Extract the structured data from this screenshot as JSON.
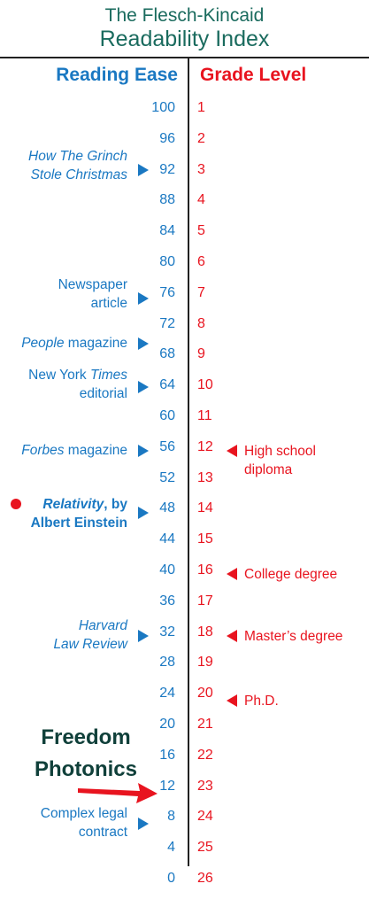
{
  "title": {
    "line1": "The Flesch-Kincaid",
    "line2": "Readability Index"
  },
  "headers": {
    "reading_ease": "Reading Ease",
    "grade_level": "Grade Level"
  },
  "scale": [
    {
      "ease": "100",
      "grade": "1"
    },
    {
      "ease": "96",
      "grade": "2"
    },
    {
      "ease": "92",
      "grade": "3"
    },
    {
      "ease": "88",
      "grade": "4"
    },
    {
      "ease": "84",
      "grade": "5"
    },
    {
      "ease": "80",
      "grade": "6"
    },
    {
      "ease": "76",
      "grade": "7"
    },
    {
      "ease": "72",
      "grade": "8"
    },
    {
      "ease": "68",
      "grade": "9"
    },
    {
      "ease": "64",
      "grade": "10"
    },
    {
      "ease": "60",
      "grade": "11"
    },
    {
      "ease": "56",
      "grade": "12"
    },
    {
      "ease": "52",
      "grade": "13"
    },
    {
      "ease": "48",
      "grade": "14"
    },
    {
      "ease": "44",
      "grade": "15"
    },
    {
      "ease": "40",
      "grade": "16"
    },
    {
      "ease": "36",
      "grade": "17"
    },
    {
      "ease": "32",
      "grade": "18"
    },
    {
      "ease": "28",
      "grade": "19"
    },
    {
      "ease": "24",
      "grade": "20"
    },
    {
      "ease": "20",
      "grade": "21"
    },
    {
      "ease": "16",
      "grade": "22"
    },
    {
      "ease": "12",
      "grade": "23"
    },
    {
      "ease": "8",
      "grade": "24"
    },
    {
      "ease": "4",
      "grade": "25"
    },
    {
      "ease": "0",
      "grade": "26"
    }
  ],
  "ease_labels": {
    "grinch_1": "How The Grinch",
    "grinch_2": "Stole Christmas",
    "newspaper_1": "Newspaper",
    "newspaper_2": "article",
    "people_italic": "People",
    "people_rest": " magazine",
    "nyt_1_plain": "New York ",
    "nyt_1_italic": "Times",
    "nyt_2": "editorial",
    "forbes_italic": "Forbes",
    "forbes_rest": " magazine",
    "relativity_italic": "Relativity",
    "relativity_rest": ", by",
    "relativity_2": "Albert Einstein",
    "harvard_1": "Harvard",
    "harvard_2": "Law Review",
    "legal_1": "Complex legal",
    "legal_2": "contract"
  },
  "grade_labels": {
    "high_school_1": "High school",
    "high_school_2": "diploma",
    "college": "College degree",
    "masters": "Master’s degree",
    "phd": "Ph.D."
  },
  "brand": {
    "line1": "Freedom",
    "line2": "Photonics"
  },
  "colors": {
    "ease": "#1a78c2",
    "grade": "#e8141f",
    "title": "#1a6b5e",
    "brand": "#10403a"
  }
}
